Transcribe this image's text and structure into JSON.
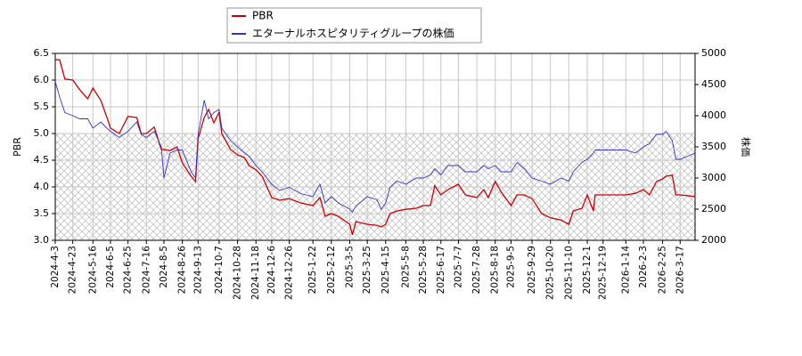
{
  "chart_data": {
    "type": "line",
    "y_label": "PBR",
    "y2_label": "株価",
    "x": [
      "2024-4-3",
      "2024-4-8",
      "2024-4-14",
      "2024-4-23",
      "2024-5-1",
      "2024-5-10",
      "2024-5-16",
      "2024-5-25",
      "2024-6-1",
      "2024-6-5",
      "2024-6-15",
      "2024-6-25",
      "2024-7-5",
      "2024-7-10",
      "2024-7-16",
      "2024-7-25",
      "2024-8-2",
      "2024-8-5",
      "2024-8-12",
      "2024-8-20",
      "2024-8-26",
      "2024-9-5",
      "2024-9-10",
      "2024-9-13",
      "2024-9-20",
      "2024-9-25",
      "2024-10-1",
      "2024-10-7",
      "2024-10-10",
      "2024-10-20",
      "2024-10-28",
      "2024-11-5",
      "2024-11-10",
      "2024-11-18",
      "2024-11-25",
      "2024-12-6",
      "2024-12-15",
      "2024-12-26",
      "2025-1-8",
      "2025-1-22",
      "2025-1-30",
      "2025-2-5",
      "2025-2-12",
      "2025-2-20",
      "2025-3-5",
      "2025-3-8",
      "2025-3-12",
      "2025-3-25",
      "2025-4-5",
      "2025-4-10",
      "2025-4-15",
      "2025-4-20",
      "2025-4-28",
      "2025-5-8",
      "2025-5-20",
      "2025-5-28",
      "2025-6-5",
      "2025-6-10",
      "2025-6-17",
      "2025-6-25",
      "2025-7-7",
      "2025-7-15",
      "2025-7-28",
      "2025-8-5",
      "2025-8-10",
      "2025-8-18",
      "2025-8-25",
      "2025-9-5",
      "2025-9-12",
      "2025-9-20",
      "2025-9-29",
      "2025-10-10",
      "2025-10-20",
      "2025-11-1",
      "2025-11-10",
      "2025-11-15",
      "2025-11-25",
      "2025-12-1",
      "2025-12-8",
      "2025-12-10",
      "2025-12-19",
      "2026-1-5",
      "2026-1-14",
      "2026-1-25",
      "2026-2-3",
      "2026-2-10",
      "2026-2-18",
      "2026-2-25",
      "2026-3-1",
      "2026-3-8",
      "2026-3-12",
      "2026-3-17",
      "2026-4-3"
    ],
    "series": [
      {
        "name": "PBR",
        "color": "#cc0000",
        "axis": "y",
        "values": [
          6.38,
          6.38,
          6.02,
          6.0,
          5.82,
          5.65,
          5.85,
          5.62,
          5.3,
          5.1,
          5.0,
          5.32,
          5.3,
          5.0,
          5.0,
          5.12,
          4.7,
          4.7,
          4.68,
          4.75,
          4.45,
          4.2,
          4.1,
          4.9,
          5.3,
          5.45,
          5.2,
          5.4,
          5.0,
          4.7,
          4.6,
          4.55,
          4.4,
          4.32,
          4.2,
          3.8,
          3.75,
          3.78,
          3.7,
          3.65,
          3.8,
          3.45,
          3.5,
          3.45,
          3.3,
          3.1,
          3.35,
          3.3,
          3.28,
          3.25,
          3.3,
          3.5,
          3.55,
          3.58,
          3.6,
          3.65,
          3.65,
          4.02,
          3.85,
          3.95,
          4.05,
          3.85,
          3.8,
          3.95,
          3.8,
          4.1,
          3.9,
          3.65,
          3.85,
          3.85,
          3.78,
          3.5,
          3.42,
          3.38,
          3.3,
          3.55,
          3.6,
          3.85,
          3.55,
          3.85,
          3.85,
          3.85,
          3.85,
          3.88,
          3.95,
          3.85,
          4.1,
          4.15,
          4.2,
          4.22,
          3.85,
          3.85,
          3.82
        ]
      },
      {
        "name": "エターナルホスピタリティグループの株価",
        "color": "#3333cc",
        "axis": "y2",
        "values": [
          4550,
          4300,
          4050,
          4000,
          3950,
          3950,
          3800,
          3900,
          3800,
          3750,
          3650,
          3750,
          3900,
          3700,
          3650,
          3750,
          3500,
          3000,
          3400,
          3450,
          3450,
          3100,
          3000,
          3700,
          4250,
          3950,
          4050,
          4100,
          3800,
          3600,
          3500,
          3400,
          3350,
          3200,
          3100,
          2900,
          2800,
          2850,
          2750,
          2700,
          2900,
          2600,
          2700,
          2600,
          2500,
          2450,
          2550,
          2700,
          2650,
          2500,
          2600,
          2850,
          2950,
          2900,
          3000,
          3000,
          3050,
          3150,
          3050,
          3200,
          3200,
          3100,
          3100,
          3200,
          3150,
          3200,
          3100,
          3100,
          3250,
          3150,
          3000,
          2950,
          2900,
          3000,
          2950,
          3100,
          3250,
          3300,
          3400,
          3450,
          3450,
          3450,
          3450,
          3400,
          3500,
          3550,
          3700,
          3700,
          3750,
          3600,
          3300,
          3300,
          3400
        ]
      }
    ],
    "xlim": [
      "2024-4-3",
      "2026-4-3"
    ],
    "xticks": [
      "2024-4-3",
      "2024-4-23",
      "2024-5-16",
      "2024-6-5",
      "2024-6-25",
      "2024-7-16",
      "2024-8-5",
      "2024-8-26",
      "2024-9-13",
      "2024-10-7",
      "2024-10-28",
      "2024-11-18",
      "2024-12-6",
      "2024-12-26",
      "2025-1-22",
      "2025-2-12",
      "2025-3-5",
      "2025-3-25",
      "2025-4-15",
      "2025-5-8",
      "2025-5-28",
      "2025-6-17",
      "2025-7-7",
      "2025-7-28",
      "2025-8-18",
      "2025-9-5",
      "2025-9-29",
      "2025-10-20",
      "2025-11-10",
      "2025-12-1",
      "2025-12-19",
      "2026-1-14",
      "2026-2-3",
      "2026-2-25",
      "2026-3-17"
    ],
    "ylim": [
      3.0,
      6.5
    ],
    "yticks": [
      {
        "value": 3.0,
        "label": "3.0"
      },
      3.5,
      {
        "value": 4.0,
        "label": "4.0"
      },
      4.5,
      {
        "value": 5.0,
        "label": "5.0"
      },
      5.5,
      {
        "value": 6.0,
        "label": "6.0"
      },
      6.5
    ],
    "y2lim": [
      2000,
      5000
    ],
    "y2ticks": [
      2000,
      2500,
      3000,
      3500,
      4000,
      4500,
      5000
    ],
    "shaded_range": [
      3.0,
      5.0
    ],
    "grid": true
  }
}
